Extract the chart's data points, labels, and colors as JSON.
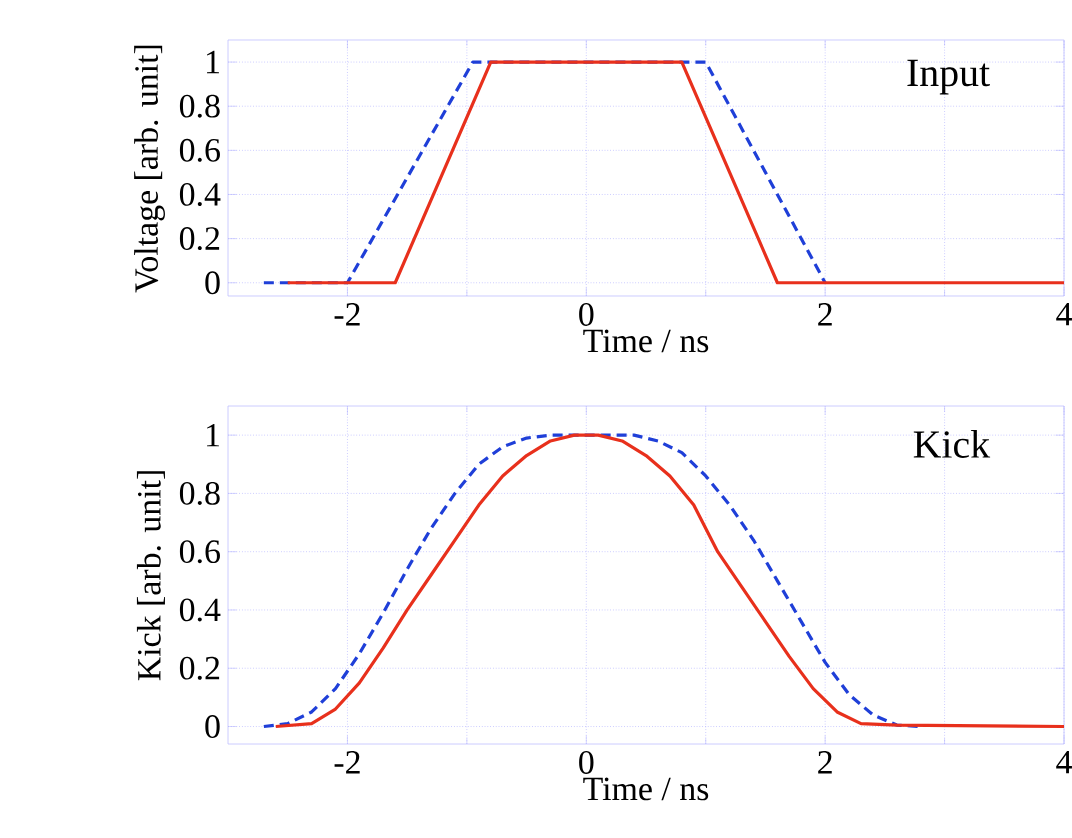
{
  "chart_data": [
    {
      "type": "line",
      "xlabel": "Time / ns",
      "ylabel": "Voltage [arb. unit]",
      "annotations": [
        "Input"
      ],
      "xlim": [
        -3,
        4
      ],
      "ylim": [
        -0.06,
        1.1
      ],
      "xticks": [
        -2,
        0,
        2,
        4
      ],
      "yticks": [
        0,
        0.2,
        0.4,
        0.6,
        0.8,
        1
      ],
      "grid": true,
      "marker": "none",
      "series": [
        {
          "color": "#1f3fd8",
          "line_style": "dashed",
          "x": [
            -2.7,
            -2,
            -0.95,
            1,
            2
          ],
          "values": [
            0,
            0,
            1,
            1,
            0
          ]
        },
        {
          "color": "#e8301c",
          "line_style": "solid",
          "x": [
            -2.5,
            -1.6,
            -0.8,
            0.8,
            1.6,
            4
          ],
          "values": [
            0,
            0,
            1,
            1,
            0,
            0
          ]
        }
      ]
    },
    {
      "type": "line",
      "xlabel": "Time / ns",
      "ylabel": "Kick [arb. unit]",
      "annotations": [
        "Kick"
      ],
      "xlim": [
        -3,
        4
      ],
      "ylim": [
        -0.06,
        1.1
      ],
      "xticks": [
        -2,
        0,
        2,
        4
      ],
      "yticks": [
        0,
        0.2,
        0.4,
        0.6,
        0.8,
        1
      ],
      "grid": true,
      "marker": "none",
      "series": [
        {
          "color": "#1f3fd8",
          "line_style": "dashed",
          "x": [
            -2.7,
            -2.5,
            -2.3,
            -2.1,
            -1.9,
            -1.7,
            -1.5,
            -1.3,
            -1.1,
            -0.9,
            -0.7,
            -0.5,
            -0.3,
            0,
            0.4,
            0.6,
            0.8,
            1.0,
            1.2,
            1.4,
            1.6,
            1.8,
            2.0,
            2.2,
            2.4,
            2.6,
            2.8
          ],
          "values": [
            0,
            0.01,
            0.05,
            0.13,
            0.25,
            0.39,
            0.54,
            0.68,
            0.8,
            0.9,
            0.96,
            0.99,
            1,
            1,
            1,
            0.98,
            0.94,
            0.86,
            0.76,
            0.64,
            0.5,
            0.36,
            0.22,
            0.11,
            0.04,
            0.005,
            0
          ]
        },
        {
          "color": "#e8301c",
          "line_style": "solid",
          "x": [
            -2.6,
            -2.3,
            -2.1,
            -1.9,
            -1.7,
            -1.5,
            -1.3,
            -1.1,
            -0.9,
            -0.7,
            -0.5,
            -0.3,
            -0.1,
            0.1,
            0.3,
            0.5,
            0.7,
            0.9,
            1.1,
            1.3,
            1.5,
            1.7,
            1.9,
            2.1,
            2.3,
            2.6,
            4
          ],
          "values": [
            0,
            0.01,
            0.06,
            0.15,
            0.27,
            0.4,
            0.52,
            0.64,
            0.76,
            0.86,
            0.93,
            0.98,
            1,
            1,
            0.98,
            0.93,
            0.86,
            0.76,
            0.6,
            0.48,
            0.36,
            0.24,
            0.13,
            0.05,
            0.01,
            0.005,
            0
          ]
        }
      ]
    }
  ]
}
